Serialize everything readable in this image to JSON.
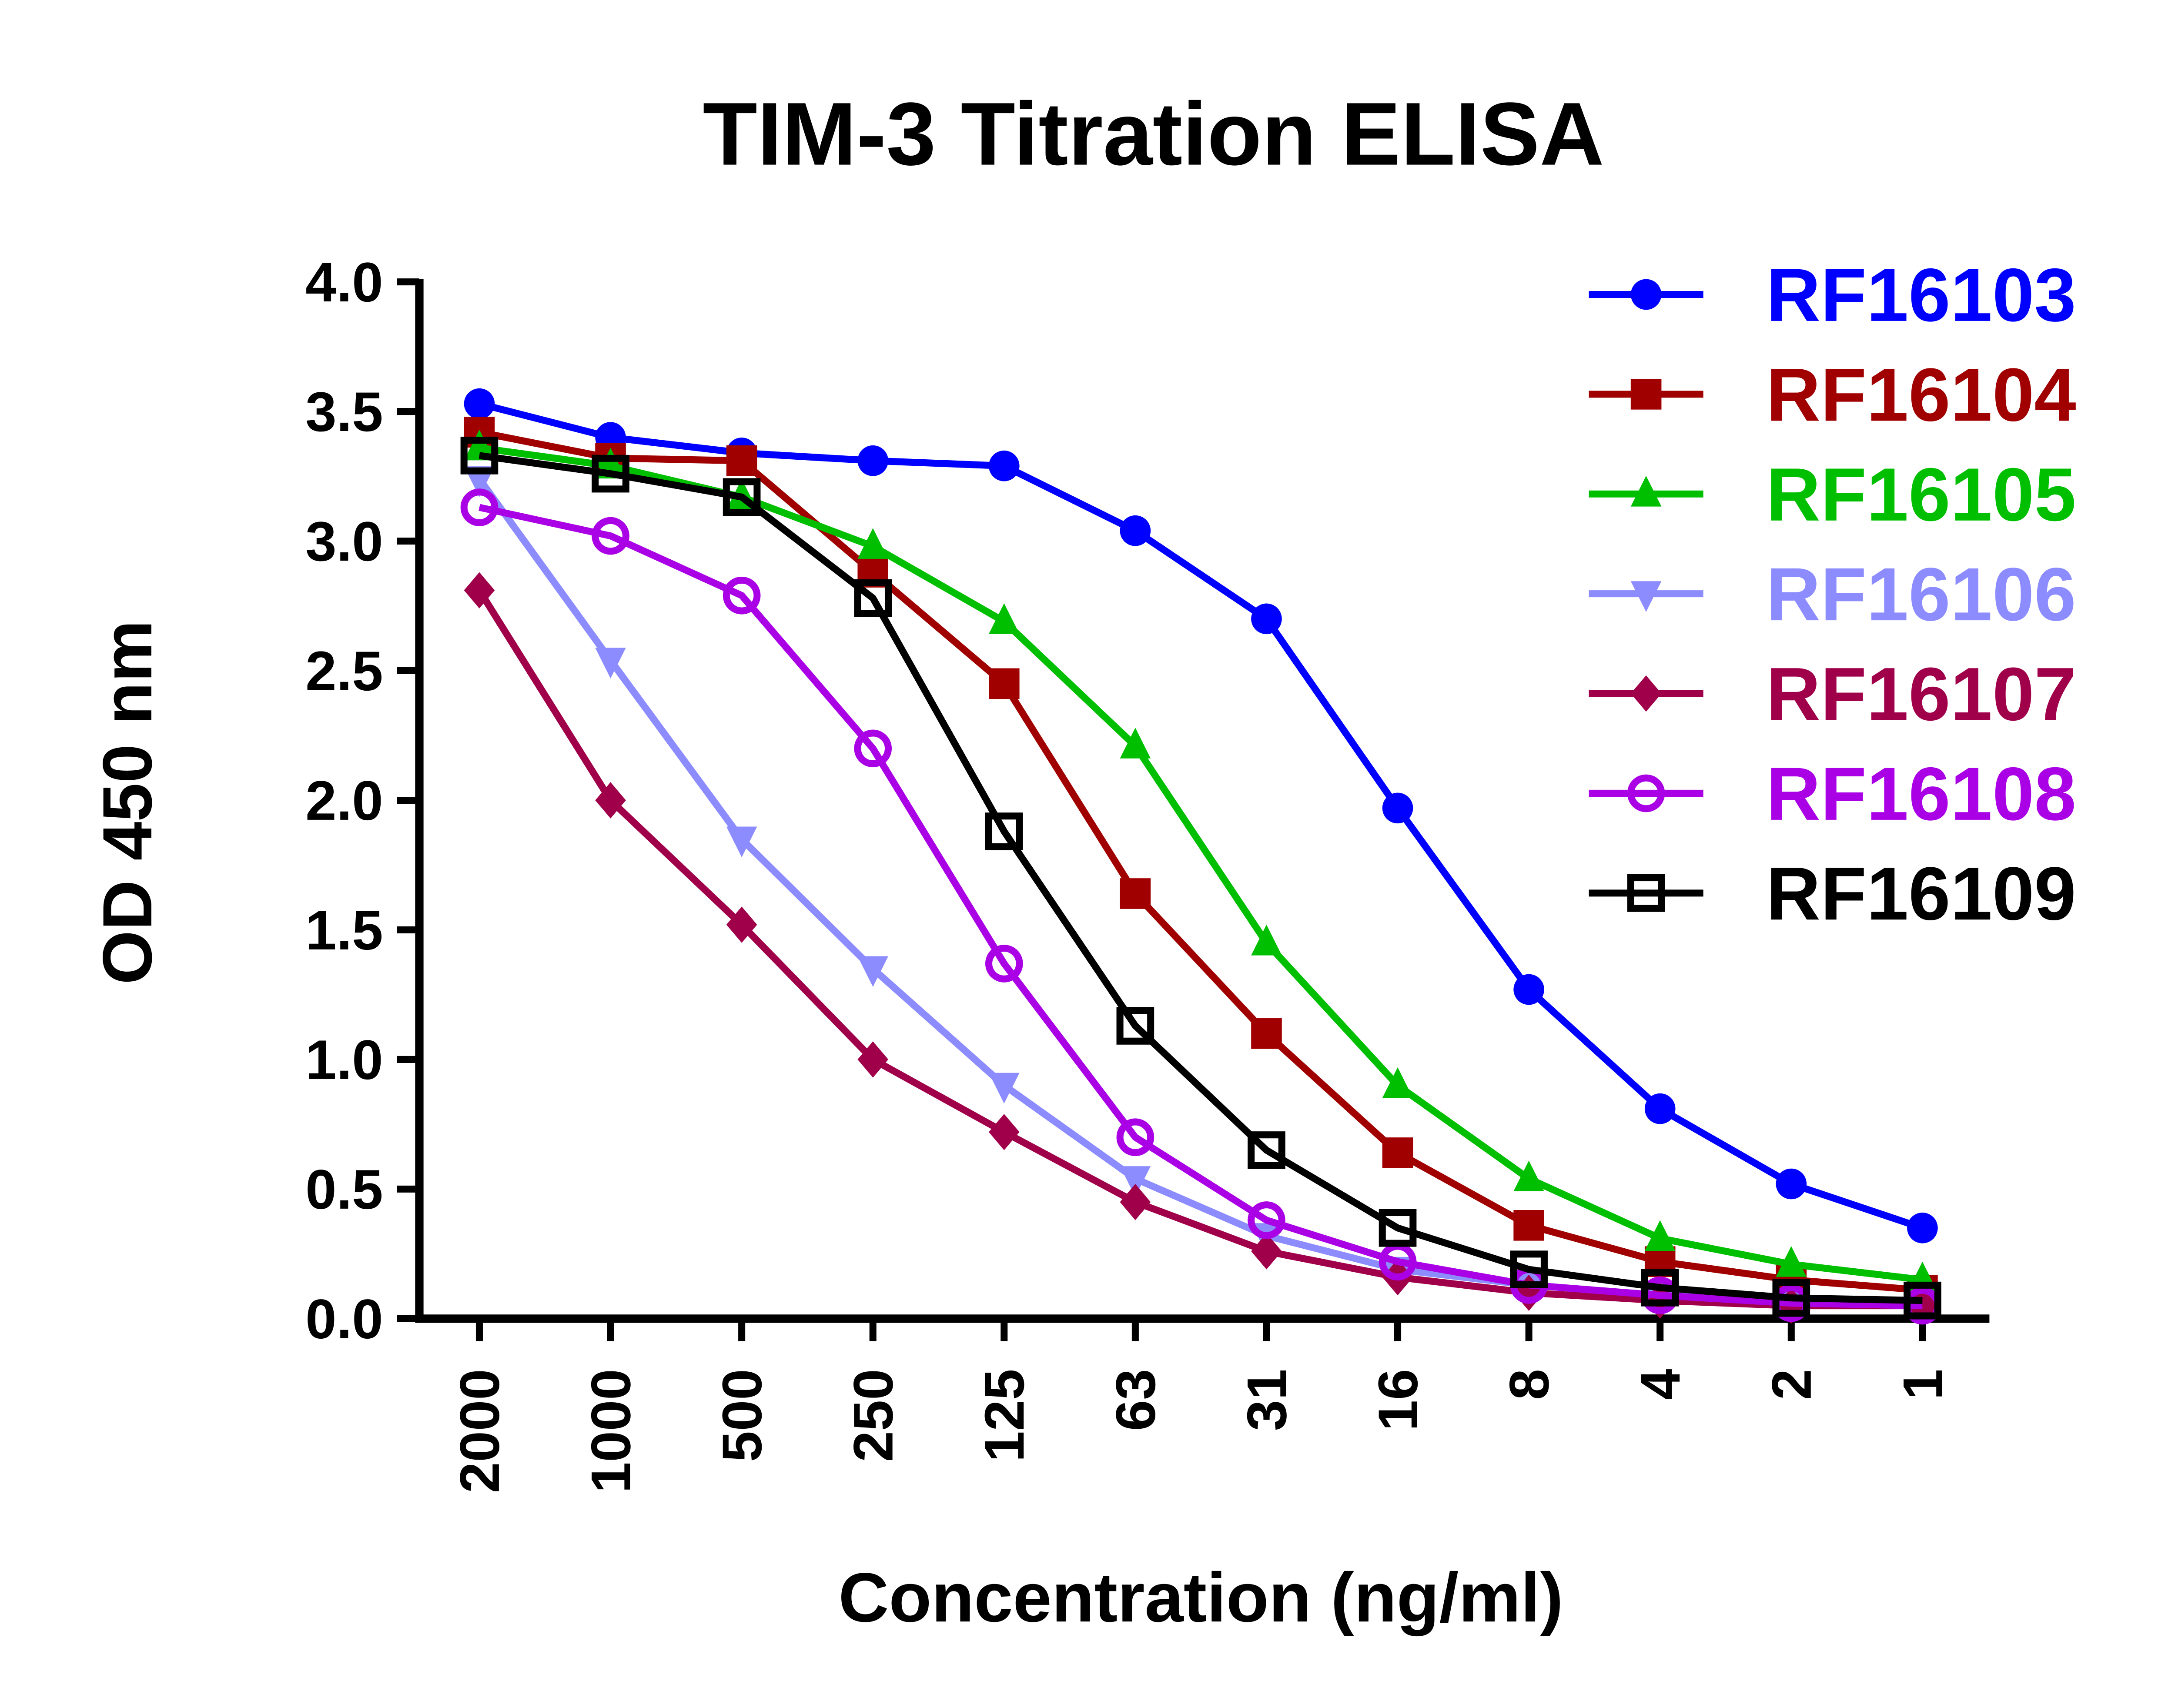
{
  "chart_data": {
    "type": "line",
    "title": "TIM-3 Titration ELISA",
    "xlabel": "Concentration (ng/ml)",
    "ylabel": "OD 450 nm",
    "categories": [
      "2000",
      "1000",
      "500",
      "250",
      "125",
      "63",
      "31",
      "16",
      "8",
      "4",
      "2",
      "1"
    ],
    "ylim": [
      0,
      4.0
    ],
    "yticks": [
      "0.0",
      "0.5",
      "1.0",
      "1.5",
      "2.0",
      "2.5",
      "3.0",
      "3.5",
      "4.0"
    ],
    "grid": false,
    "legend_position": "top-right",
    "series": [
      {
        "name": "RF16103",
        "color": "#0000ff",
        "marker": "circle",
        "values": [
          3.53,
          3.4,
          3.34,
          3.31,
          3.29,
          3.04,
          2.7,
          1.97,
          1.27,
          0.81,
          0.52,
          0.35
        ]
      },
      {
        "name": "RF16104",
        "color": "#a00000",
        "marker": "square",
        "values": [
          3.42,
          3.32,
          3.31,
          2.88,
          2.45,
          1.64,
          1.1,
          0.64,
          0.36,
          0.22,
          0.15,
          0.11
        ]
      },
      {
        "name": "RF16105",
        "color": "#00bf00",
        "marker": "triangle-up",
        "values": [
          3.36,
          3.29,
          3.17,
          2.98,
          2.69,
          2.21,
          1.45,
          0.9,
          0.54,
          0.31,
          0.21,
          0.15
        ]
      },
      {
        "name": "RF16106",
        "color": "#8c8cff",
        "marker": "triangle-down",
        "values": [
          3.24,
          2.54,
          1.85,
          1.35,
          0.9,
          0.54,
          0.32,
          0.19,
          0.13,
          0.09,
          0.07,
          0.06
        ]
      },
      {
        "name": "RF16107",
        "color": "#a0004a",
        "marker": "diamond",
        "values": [
          2.81,
          2.0,
          1.52,
          1.0,
          0.72,
          0.45,
          0.26,
          0.16,
          0.1,
          0.07,
          0.05,
          0.05
        ]
      },
      {
        "name": "RF16108",
        "color": "#aa00e6",
        "marker": "open-circle",
        "values": [
          3.13,
          3.02,
          2.79,
          2.2,
          1.37,
          0.7,
          0.38,
          0.22,
          0.13,
          0.09,
          0.06,
          0.05
        ]
      },
      {
        "name": "RF16109",
        "color": "#000000",
        "marker": "open-square",
        "values": [
          3.33,
          3.26,
          3.17,
          2.78,
          1.88,
          1.13,
          0.65,
          0.35,
          0.19,
          0.12,
          0.08,
          0.07
        ]
      }
    ]
  }
}
